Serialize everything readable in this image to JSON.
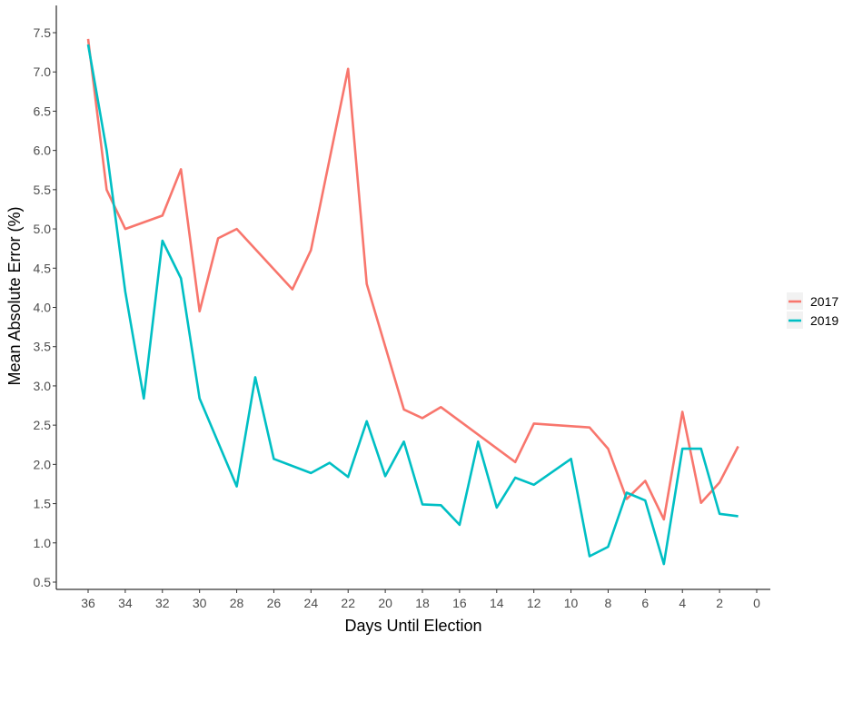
{
  "chart_data": {
    "type": "line",
    "xlabel": "Days Until Election",
    "ylabel": "Mean Absolute Error (%)",
    "xlim": [
      37.5,
      -1
    ],
    "ylim": [
      0.4,
      7.8
    ],
    "x_reversed": true,
    "x_ticks": [
      36,
      34,
      32,
      30,
      28,
      26,
      24,
      22,
      20,
      18,
      16,
      14,
      12,
      10,
      8,
      6,
      4,
      2,
      0
    ],
    "y_ticks": [
      0.5,
      1.0,
      1.5,
      2.0,
      2.5,
      3.0,
      3.5,
      4.0,
      4.5,
      5.0,
      5.5,
      6.0,
      6.5,
      7.0,
      7.5
    ],
    "y_tick_labels": [
      "0.5",
      "1.0",
      "1.5",
      "2.0",
      "2.5",
      "3.0",
      "3.5",
      "4.0",
      "4.5",
      "5.0",
      "5.5",
      "6.0",
      "6.5",
      "7.0",
      "7.5"
    ],
    "grid": false,
    "legend_position": "right",
    "series": [
      {
        "name": "2017",
        "color": "#F8766D",
        "x": [
          36,
          35,
          34,
          32,
          31,
          30,
          29,
          28,
          25,
          24,
          22,
          21,
          19,
          18,
          17,
          13,
          12,
          9,
          8,
          7,
          6,
          5,
          4,
          3,
          2,
          1
        ],
        "y": [
          7.42,
          5.5,
          5.0,
          5.17,
          5.76,
          3.95,
          4.88,
          5.0,
          4.23,
          4.73,
          7.04,
          4.3,
          2.7,
          2.59,
          2.73,
          2.03,
          2.52,
          2.47,
          2.2,
          1.56,
          1.79,
          1.3,
          2.67,
          1.51,
          1.77,
          2.23
        ]
      },
      {
        "name": "2019",
        "color": "#00BFC4",
        "x": [
          36,
          35,
          34,
          33,
          32,
          31,
          30,
          28,
          27,
          26,
          24,
          23,
          22,
          21,
          20,
          19,
          18,
          17,
          16,
          15,
          14,
          13,
          12,
          10,
          9,
          8,
          7,
          6,
          5,
          4,
          3,
          2,
          1
        ],
        "y": [
          7.35,
          6.0,
          4.2,
          2.84,
          4.85,
          4.37,
          2.84,
          1.72,
          3.11,
          2.07,
          1.89,
          2.02,
          1.84,
          2.55,
          1.85,
          2.29,
          1.49,
          1.48,
          1.23,
          2.29,
          1.45,
          1.83,
          1.74,
          2.07,
          0.83,
          0.95,
          1.64,
          1.54,
          0.73,
          2.2,
          2.2,
          1.37,
          1.34
        ]
      }
    ]
  }
}
